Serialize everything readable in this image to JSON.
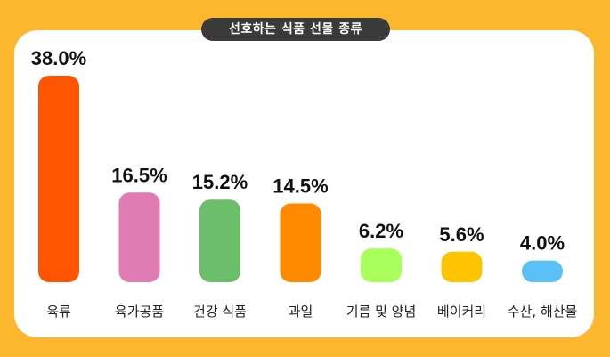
{
  "chart_data": {
    "type": "bar",
    "title": "선호하는 식품 선물 종류",
    "categories": [
      "육류",
      "육가공품",
      "건강 식품",
      "과일",
      "기름 및 양념",
      "베이커리",
      "수산, 해산물"
    ],
    "values": [
      38.0,
      16.5,
      15.2,
      14.5,
      6.2,
      5.6,
      4.0
    ],
    "value_labels": [
      "38.0%",
      "16.5%",
      "15.2%",
      "14.5%",
      "6.2%",
      "5.6%",
      "4.0%"
    ],
    "colors": [
      "#FF5500",
      "#E07BB3",
      "#6BBF6B",
      "#FF8A00",
      "#A8FF5A",
      "#FFC400",
      "#5BC0F5"
    ],
    "xlabel": "",
    "ylabel": "",
    "ylim": [
      0,
      38
    ],
    "grid": false,
    "legend": "none"
  }
}
